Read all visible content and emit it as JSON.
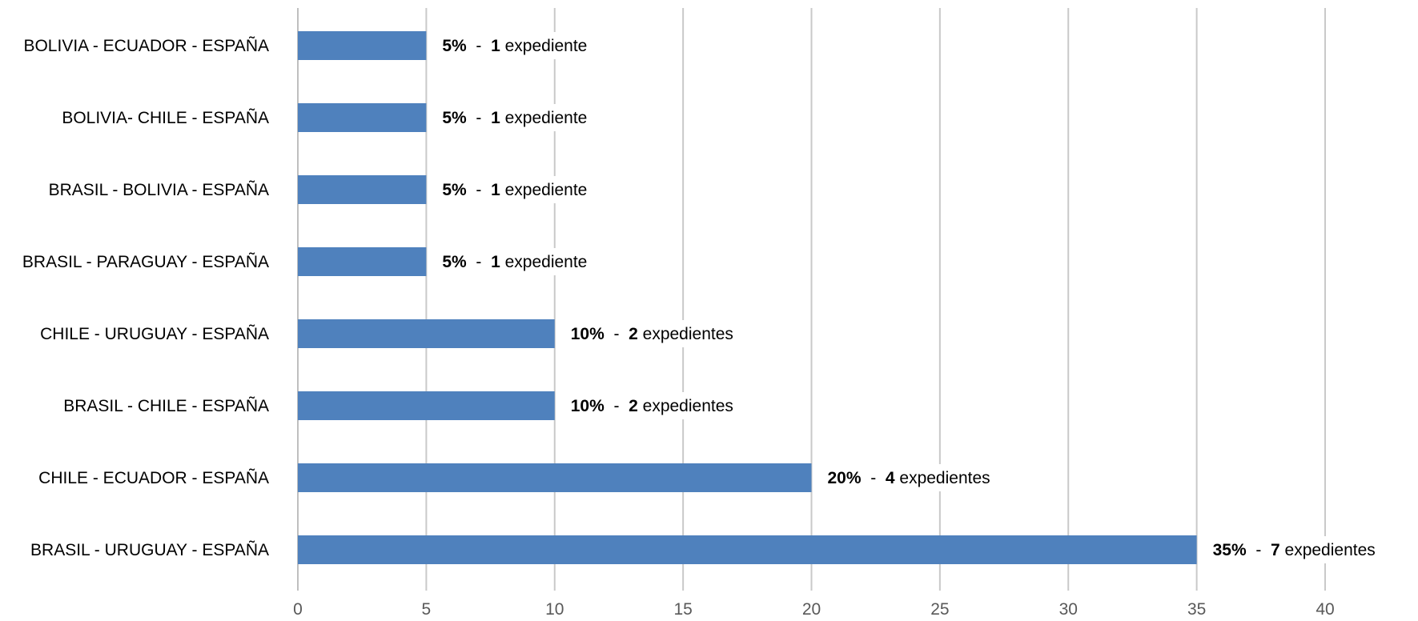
{
  "chart_data": {
    "type": "bar",
    "orientation": "horizontal",
    "categories": [
      "BOLIVIA - ECUADOR - ESPAÑA",
      "BOLIVIA- CHILE - ESPAÑA",
      "BRASIL - BOLIVIA - ESPAÑA",
      "BRASIL - PARAGUAY - ESPAÑA",
      "CHILE - URUGUAY - ESPAÑA",
      "BRASIL - CHILE - ESPAÑA",
      "CHILE - ECUADOR - ESPAÑA",
      "BRASIL - URUGUAY - ESPAÑA"
    ],
    "values": [
      5,
      5,
      5,
      5,
      10,
      10,
      20,
      35
    ],
    "data_labels": [
      {
        "percent": "5%",
        "count": "1",
        "unit": "expediente"
      },
      {
        "percent": "5%",
        "count": "1",
        "unit": "expediente"
      },
      {
        "percent": "5%",
        "count": "1",
        "unit": "expediente"
      },
      {
        "percent": "5%",
        "count": "1",
        "unit": "expediente"
      },
      {
        "percent": "10%",
        "count": "2",
        "unit": "expedientes"
      },
      {
        "percent": "10%",
        "count": "2",
        "unit": "expedientes"
      },
      {
        "percent": "20%",
        "count": "4",
        "unit": "expedientes"
      },
      {
        "percent": "35%",
        "count": "7",
        "unit": "expedientes"
      }
    ],
    "separator": "-",
    "xlim": [
      0,
      40
    ],
    "xticks": [
      0,
      5,
      10,
      15,
      20,
      25,
      30,
      35,
      40
    ],
    "grid": true,
    "legend": "none",
    "bar_color": "#4f81bd",
    "title": "",
    "xlabel": "",
    "ylabel": ""
  }
}
